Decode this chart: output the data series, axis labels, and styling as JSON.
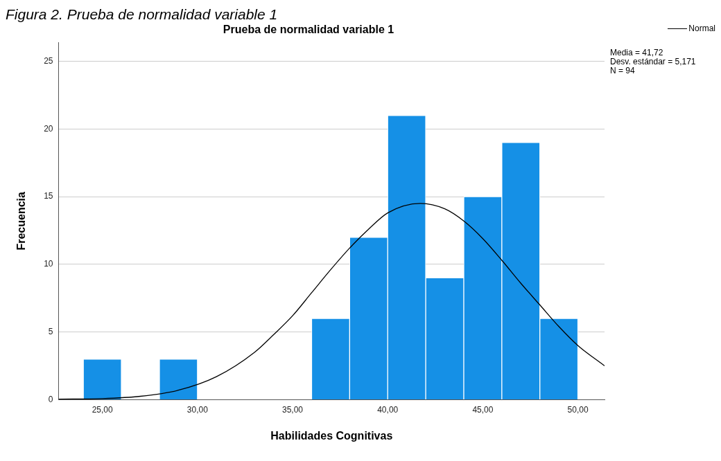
{
  "chart_data": {
    "type": "histogram",
    "title": "Prueba de normalidad variable 1",
    "xlabel": "Habilidades Cognitivas",
    "ylabel": "Frecuencia",
    "annotations": [
      "Figura 2. Prueba de normalidad variable 1",
      "Media = 41,72\nDesv. estándar = 5,171\nN = 94"
    ],
    "bins": [
      24,
      26,
      28,
      30,
      32,
      34,
      36,
      38,
      40,
      42,
      44,
      46,
      48,
      50
    ],
    "series": [
      {
        "values": [
          3,
          0,
          3,
          0,
          0,
          0,
          6,
          12,
          21,
          9,
          15,
          19,
          6
        ],
        "color": "#1590e6"
      },
      {
        "name": "Normal",
        "type": "line",
        "color": "#000000",
        "x": [
          22.7,
          25,
          27,
          29,
          31,
          33,
          34,
          35,
          36,
          37,
          38,
          39,
          40,
          41.72,
          43,
          44,
          45,
          46,
          47,
          48,
          49,
          50,
          51.4
        ],
        "values": [
          0.04,
          0.08,
          0.25,
          0.7,
          1.7,
          3.5,
          4.8,
          6.2,
          7.9,
          9.6,
          11.2,
          12.6,
          13.8,
          14.5,
          14.1,
          13.2,
          11.9,
          10.3,
          8.6,
          7.0,
          5.4,
          4.0,
          2.5
        ]
      }
    ],
    "xlim": [
      22.7,
      51.4
    ],
    "xticks": [
      {
        "value": 25,
        "label": "25,00"
      },
      {
        "value": 30,
        "label": "30,00"
      },
      {
        "value": 35,
        "label": "35,00"
      },
      {
        "value": 40,
        "label": "40,00"
      },
      {
        "value": 45,
        "label": "45,00"
      },
      {
        "value": 50,
        "label": "50,00"
      }
    ],
    "ylim": [
      0,
      26.4
    ],
    "yticks": [
      0,
      5,
      10,
      15,
      20,
      25
    ],
    "grid": "y",
    "legend": "top right"
  }
}
